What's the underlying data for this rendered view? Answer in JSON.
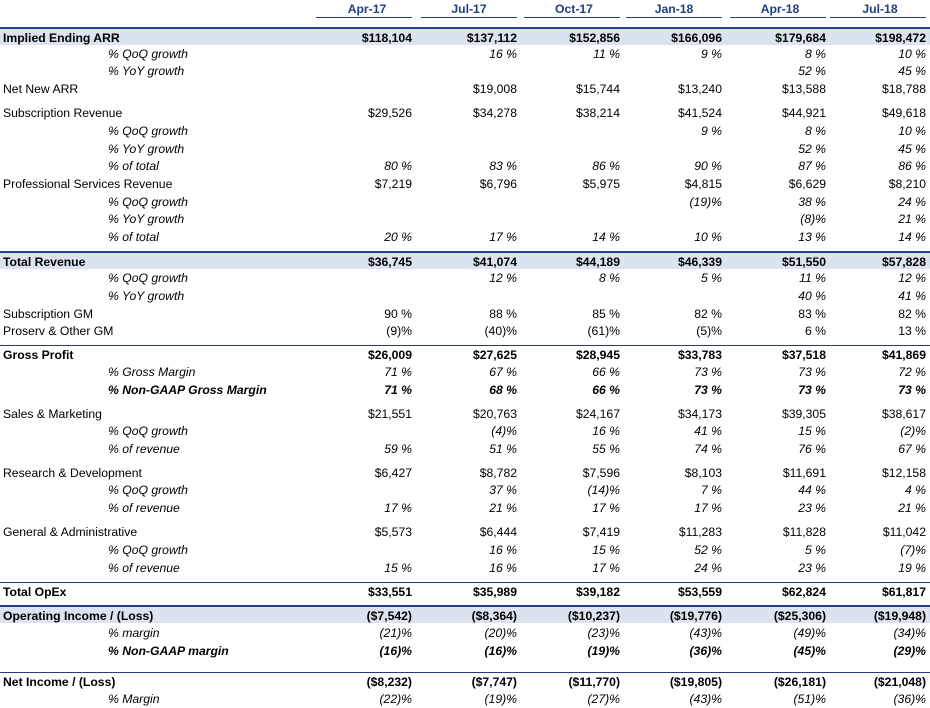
{
  "header": {
    "periods": [
      "Apr-17",
      "Jul-17",
      "Oct-17",
      "Jan-18",
      "Apr-18",
      "Jul-18"
    ]
  },
  "rows": [
    {
      "label": "Implied Ending ARR",
      "values": [
        "$118,104",
        "$137,112",
        "$152,856",
        "$166,096",
        "$179,684",
        "$198,472"
      ],
      "style": "bold shade topline"
    },
    {
      "label": "% QoQ growth",
      "values": [
        "",
        "16 %",
        "11 %",
        "9 %",
        "8 %",
        "10 %"
      ],
      "style": "sub"
    },
    {
      "label": "% YoY growth",
      "values": [
        "",
        "",
        "",
        "",
        "52 %",
        "45 %"
      ],
      "style": "sub"
    },
    {
      "label": "Net New ARR",
      "values": [
        "",
        "$19,008",
        "$15,744",
        "$13,240",
        "$13,588",
        "$18,788"
      ],
      "style": "plain"
    },
    {
      "label": "Subscription Revenue",
      "values": [
        "$29,526",
        "$34,278",
        "$38,214",
        "$41,524",
        "$44,921",
        "$49,618"
      ],
      "style": "plain"
    },
    {
      "label": "% QoQ growth",
      "values": [
        "",
        "",
        "",
        "9 %",
        "8 %",
        "10 %"
      ],
      "style": "sub"
    },
    {
      "label": "% YoY growth",
      "values": [
        "",
        "",
        "",
        "",
        "52 %",
        "45 %"
      ],
      "style": "sub"
    },
    {
      "label": "% of total",
      "values": [
        "80 %",
        "83 %",
        "86 %",
        "90 %",
        "87 %",
        "86 %"
      ],
      "style": "sub"
    },
    {
      "label": "Professional Services Revenue",
      "values": [
        "$7,219",
        "$6,796",
        "$5,975",
        "$4,815",
        "$6,629",
        "$8,210"
      ],
      "style": "plain"
    },
    {
      "label": "% QoQ growth",
      "values": [
        "",
        "",
        "",
        "(19)%",
        "38 %",
        "24 %"
      ],
      "style": "sub"
    },
    {
      "label": "% YoY growth",
      "values": [
        "",
        "",
        "",
        "",
        "(8)%",
        "21 %"
      ],
      "style": "sub"
    },
    {
      "label": "% of total",
      "values": [
        "20 %",
        "17 %",
        "14 %",
        "10 %",
        "13 %",
        "14 %"
      ],
      "style": "sub"
    },
    {
      "label": "Total Revenue",
      "values": [
        "$36,745",
        "$41,074",
        "$44,189",
        "$46,339",
        "$51,550",
        "$57,828"
      ],
      "style": "bold shade topline"
    },
    {
      "label": "% QoQ growth",
      "values": [
        "",
        "12 %",
        "8 %",
        "5 %",
        "11 %",
        "12 %"
      ],
      "style": "sub"
    },
    {
      "label": "% YoY growth",
      "values": [
        "",
        "",
        "",
        "",
        "40 %",
        "41 %"
      ],
      "style": "sub"
    },
    {
      "label": "Subscription GM",
      "values": [
        "90 %",
        "88 %",
        "85 %",
        "82 %",
        "83 %",
        "82 %"
      ],
      "style": "plain"
    },
    {
      "label": "Proserv & Other GM",
      "values": [
        "(9)%",
        "(40)%",
        "(61)%",
        "(5)%",
        "6 %",
        "13 %"
      ],
      "style": "plain"
    },
    {
      "label": "Gross Profit",
      "values": [
        "$26,009",
        "$27,625",
        "$28,945",
        "$33,783",
        "$37,518",
        "$41,869"
      ],
      "style": "bold topthin"
    },
    {
      "label": "% Gross Margin",
      "values": [
        "71 %",
        "67 %",
        "66 %",
        "73 %",
        "73 %",
        "72 %"
      ],
      "style": "sub"
    },
    {
      "label": "% Non-GAAP Gross Margin",
      "values": [
        "71 %",
        "68 %",
        "66 %",
        "73 %",
        "73 %",
        "73 %"
      ],
      "style": "sub bold"
    },
    {
      "label": "Sales & Marketing",
      "values": [
        "$21,551",
        "$20,763",
        "$24,167",
        "$34,173",
        "$39,305",
        "$38,617"
      ],
      "style": "plain"
    },
    {
      "label": "% QoQ growth",
      "values": [
        "",
        "(4)%",
        "16 %",
        "41 %",
        "15 %",
        "(2)%"
      ],
      "style": "sub"
    },
    {
      "label": "% of revenue",
      "values": [
        "59 %",
        "51 %",
        "55 %",
        "74 %",
        "76 %",
        "67 %"
      ],
      "style": "sub"
    },
    {
      "label": "Research & Development",
      "values": [
        "$6,427",
        "$8,782",
        "$7,596",
        "$8,103",
        "$11,691",
        "$12,158"
      ],
      "style": "plain"
    },
    {
      "label": "% QoQ growth",
      "values": [
        "",
        "37 %",
        "(14)%",
        "7 %",
        "44 %",
        "4 %"
      ],
      "style": "sub"
    },
    {
      "label": "% of revenue",
      "values": [
        "17 %",
        "21 %",
        "17 %",
        "17 %",
        "23 %",
        "21 %"
      ],
      "style": "sub"
    },
    {
      "label": "General & Administrative",
      "values": [
        "$5,573",
        "$6,444",
        "$7,419",
        "$11,283",
        "$11,828",
        "$11,042"
      ],
      "style": "plain"
    },
    {
      "label": "% QoQ growth",
      "values": [
        "",
        "16 %",
        "15 %",
        "52 %",
        "5 %",
        "(7)%"
      ],
      "style": "sub"
    },
    {
      "label": "% of revenue",
      "values": [
        "15 %",
        "16 %",
        "17 %",
        "24 %",
        "23 %",
        "19 %"
      ],
      "style": "sub"
    },
    {
      "label": "Total OpEx",
      "values": [
        "$33,551",
        "$35,989",
        "$39,182",
        "$53,559",
        "$62,824",
        "$61,817"
      ],
      "style": "bold topthin"
    },
    {
      "label": "Operating Income / (Loss)",
      "values": [
        "($7,542)",
        "($8,364)",
        "($10,237)",
        "($19,776)",
        "($25,306)",
        "($19,948)"
      ],
      "style": "bold shade topline"
    },
    {
      "label": "% margin",
      "values": [
        "(21)%",
        "(20)%",
        "(23)%",
        "(43)%",
        "(49)%",
        "(34)%"
      ],
      "style": "sub"
    },
    {
      "label": "% Non-GAAP margin",
      "values": [
        "(16)%",
        "(16)%",
        "(19)%",
        "(36)%",
        "(45)%",
        "(29)%"
      ],
      "style": "sub bold"
    },
    {
      "label": "Net Income / (Loss)",
      "values": [
        "($8,232)",
        "($7,747)",
        "($11,770)",
        "($19,805)",
        "($26,181)",
        "($21,048)"
      ],
      "style": "bold topthin"
    },
    {
      "label": "% Margin",
      "values": [
        "(22)%",
        "(19)%",
        "(27)%",
        "(43)%",
        "(51)%",
        "(36)%"
      ],
      "style": "sub"
    }
  ]
}
